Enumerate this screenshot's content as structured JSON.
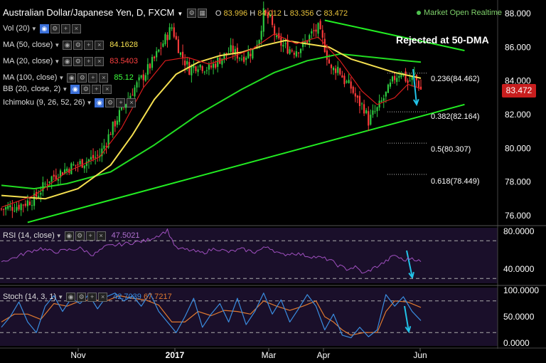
{
  "header": {
    "title": "Australian Dollar/Japanese Yen, D, FXCM",
    "ohlc": {
      "o_label": "O",
      "o": "83.996",
      "h_label": "H",
      "h": "84.012",
      "l_label": "L",
      "l": "83.356",
      "c_label": "C",
      "c": "83.472"
    },
    "status": "Market Open Realtime"
  },
  "indicators": [
    {
      "label": "Vol (20)",
      "value": "",
      "value_color": "#dddddd"
    },
    {
      "label": "MA (50, close)",
      "value": "84.1628",
      "value_color": "#f5e050"
    },
    {
      "label": "MA (20, close)",
      "value": "83.5403",
      "value_color": "#ff4040"
    },
    {
      "label": "MA (100, close)",
      "value": "85.12",
      "value_color": "#3dff3d"
    },
    {
      "label": "BB (20, close, 2)",
      "value": "",
      "value_color": "#dddddd"
    },
    {
      "label": "Ichimoku (9, 26, 52, 26)",
      "value": "",
      "value_color": "#dddddd"
    }
  ],
  "annotation": "Rejected at 50-DMA",
  "current_price": "83.472",
  "colors": {
    "bull": "#2ecc40",
    "bear": "#ff3b3b",
    "ma50": "#f5e050",
    "ma20": "#d81c1c",
    "ma100": "#22dd22",
    "trend": "#22ee22",
    "rsi": "#a050c0",
    "stoch_k": "#3a8de0",
    "stoch_d": "#e07a30",
    "arrow": "#22c3e8",
    "panel_bg": "#1a0f2a"
  },
  "chart_data": [
    {
      "type": "candlestick",
      "pair": "AUD/JPY",
      "timeframe": "D",
      "x_labels": [
        "Nov",
        "2017",
        "Mar",
        "Apr",
        "Jun"
      ],
      "ylim": [
        75.0,
        88.8
      ],
      "y_ticks": [
        "88.000",
        "86.000",
        "84.000",
        "82.000",
        "80.000",
        "78.000",
        "76.000"
      ],
      "fib_levels": [
        {
          "label": "0.236(84.462)",
          "value": 84.462
        },
        {
          "label": "0.382(82.164)",
          "value": 82.164
        },
        {
          "label": "0.5(80.307)",
          "value": 80.307
        },
        {
          "label": "0.618(78.449)",
          "value": 78.449
        }
      ],
      "close_path": [
        [
          0,
          76.4
        ],
        [
          8,
          76.6
        ],
        [
          15,
          77.0
        ],
        [
          22,
          78.2
        ],
        [
          30,
          78.8
        ],
        [
          38,
          79.2
        ],
        [
          45,
          79.6
        ],
        [
          50,
          81.0
        ],
        [
          55,
          82.3
        ],
        [
          60,
          83.4
        ],
        [
          65,
          84.3
        ],
        [
          70,
          85.3
        ],
        [
          75,
          86.5
        ],
        [
          78,
          87.2
        ],
        [
          82,
          85.6
        ],
        [
          86,
          84.7
        ],
        [
          90,
          85.0
        ],
        [
          95,
          84.7
        ],
        [
          100,
          85.3
        ],
        [
          105,
          85.8
        ],
        [
          110,
          85.4
        ],
        [
          115,
          85.8
        ],
        [
          118,
          86.6
        ],
        [
          120,
          88.0
        ],
        [
          123,
          87.6
        ],
        [
          126,
          86.4
        ],
        [
          130,
          86.0
        ],
        [
          134,
          85.8
        ],
        [
          138,
          86.1
        ],
        [
          142,
          86.8
        ],
        [
          145,
          87.1
        ],
        [
          148,
          86.0
        ],
        [
          151,
          84.6
        ],
        [
          154,
          84.8
        ],
        [
          157,
          84.0
        ],
        [
          160,
          83.6
        ],
        [
          163,
          82.8
        ],
        [
          166,
          82.4
        ],
        [
          168,
          81.6
        ],
        [
          170,
          82.0
        ],
        [
          172,
          82.3
        ],
        [
          176,
          83.2
        ],
        [
          180,
          84.2
        ],
        [
          183,
          84.6
        ],
        [
          186,
          83.9
        ],
        [
          189,
          84.3
        ],
        [
          192,
          83.472
        ]
      ],
      "ma50": [
        [
          0,
          77.2
        ],
        [
          20,
          77.0
        ],
        [
          35,
          77.6
        ],
        [
          50,
          79.0
        ],
        [
          60,
          80.8
        ],
        [
          70,
          82.9
        ],
        [
          80,
          84.4
        ],
        [
          90,
          85.1
        ],
        [
          100,
          85.5
        ],
        [
          110,
          85.7
        ],
        [
          120,
          86.1
        ],
        [
          130,
          86.4
        ],
        [
          140,
          86.2
        ],
        [
          150,
          86.0
        ],
        [
          160,
          85.3
        ],
        [
          170,
          84.9
        ],
        [
          180,
          84.5
        ],
        [
          192,
          84.16
        ]
      ],
      "ma20": [
        [
          0,
          76.5
        ],
        [
          15,
          77.2
        ],
        [
          30,
          78.6
        ],
        [
          45,
          79.5
        ],
        [
          55,
          81.2
        ],
        [
          65,
          83.6
        ],
        [
          75,
          85.2
        ],
        [
          85,
          85.4
        ],
        [
          95,
          85.0
        ],
        [
          105,
          85.4
        ],
        [
          115,
          85.9
        ],
        [
          125,
          86.8
        ],
        [
          135,
          86.2
        ],
        [
          145,
          86.6
        ],
        [
          155,
          85.2
        ],
        [
          165,
          83.4
        ],
        [
          172,
          82.6
        ],
        [
          180,
          83.0
        ],
        [
          186,
          83.8
        ],
        [
          192,
          83.54
        ]
      ],
      "ma100": [
        [
          0,
          77.8
        ],
        [
          15,
          77.6
        ],
        [
          30,
          77.9
        ],
        [
          50,
          78.6
        ],
        [
          70,
          80.2
        ],
        [
          90,
          82.0
        ],
        [
          110,
          83.5
        ],
        [
          125,
          84.5
        ],
        [
          140,
          85.2
        ],
        [
          155,
          85.6
        ],
        [
          170,
          85.4
        ],
        [
          185,
          85.2
        ],
        [
          192,
          85.12
        ]
      ],
      "trendlines": [
        {
          "from": [
            12,
            75.6
          ],
          "to": [
            212,
            82.6
          ]
        },
        {
          "from": [
            148,
            87.6
          ],
          "to": [
            212,
            85.8
          ]
        }
      ],
      "arrow_main": {
        "from": [
          190,
          84.7
        ],
        "to": [
          193,
          82.6
        ]
      }
    },
    {
      "type": "line",
      "name": "RSI (14, close)",
      "value_label": "47.5021",
      "ylim": [
        28,
        82
      ],
      "y_ticks": [
        "80.0000",
        "40.0000"
      ],
      "bands": [
        70,
        30
      ],
      "points": [
        [
          0,
          48
        ],
        [
          6,
          52
        ],
        [
          12,
          58
        ],
        [
          18,
          62
        ],
        [
          24,
          58
        ],
        [
          30,
          60
        ],
        [
          36,
          62
        ],
        [
          42,
          55
        ],
        [
          48,
          64
        ],
        [
          54,
          66
        ],
        [
          60,
          68
        ],
        [
          66,
          70
        ],
        [
          72,
          76
        ],
        [
          76,
          81
        ],
        [
          80,
          62
        ],
        [
          86,
          60
        ],
        [
          92,
          57
        ],
        [
          98,
          62
        ],
        [
          104,
          58
        ],
        [
          110,
          61
        ],
        [
          116,
          58
        ],
        [
          122,
          64
        ],
        [
          128,
          55
        ],
        [
          134,
          57
        ],
        [
          140,
          54
        ],
        [
          146,
          52
        ],
        [
          150,
          50
        ],
        [
          154,
          44
        ],
        [
          158,
          40
        ],
        [
          162,
          42
        ],
        [
          166,
          35
        ],
        [
          168,
          38
        ],
        [
          172,
          43
        ],
        [
          176,
          48
        ],
        [
          180,
          55
        ],
        [
          184,
          49
        ],
        [
          188,
          52
        ],
        [
          192,
          47.5
        ]
      ]
    },
    {
      "type": "line",
      "name": "Stoch (14, 3, 1)",
      "value_labels": [
        "42.7039",
        "67.7217"
      ],
      "ylim": [
        0,
        100
      ],
      "y_ticks": [
        "100.0000",
        "50.0000",
        "0.0000"
      ],
      "bands": [
        80,
        20
      ],
      "k": [
        [
          0,
          30
        ],
        [
          4,
          50
        ],
        [
          8,
          78
        ],
        [
          12,
          40
        ],
        [
          16,
          20
        ],
        [
          20,
          70
        ],
        [
          24,
          90
        ],
        [
          28,
          60
        ],
        [
          32,
          85
        ],
        [
          36,
          75
        ],
        [
          40,
          92
        ],
        [
          44,
          65
        ],
        [
          48,
          88
        ],
        [
          52,
          95
        ],
        [
          56,
          80
        ],
        [
          60,
          90
        ],
        [
          64,
          70
        ],
        [
          68,
          95
        ],
        [
          72,
          60
        ],
        [
          76,
          40
        ],
        [
          80,
          20
        ],
        [
          84,
          50
        ],
        [
          88,
          85
        ],
        [
          92,
          30
        ],
        [
          96,
          55
        ],
        [
          100,
          75
        ],
        [
          104,
          40
        ],
        [
          108,
          85
        ],
        [
          112,
          35
        ],
        [
          116,
          60
        ],
        [
          120,
          95
        ],
        [
          124,
          55
        ],
        [
          128,
          82
        ],
        [
          132,
          40
        ],
        [
          136,
          65
        ],
        [
          140,
          92
        ],
        [
          144,
          70
        ],
        [
          148,
          25
        ],
        [
          152,
          55
        ],
        [
          156,
          15
        ],
        [
          160,
          10
        ],
        [
          164,
          30
        ],
        [
          168,
          12
        ],
        [
          172,
          25
        ],
        [
          176,
          92
        ],
        [
          180,
          70
        ],
        [
          184,
          88
        ],
        [
          188,
          60
        ],
        [
          192,
          42.7
        ]
      ],
      "d": [
        [
          0,
          40
        ],
        [
          6,
          55
        ],
        [
          12,
          55
        ],
        [
          18,
          45
        ],
        [
          24,
          75
        ],
        [
          30,
          70
        ],
        [
          36,
          80
        ],
        [
          42,
          82
        ],
        [
          48,
          80
        ],
        [
          54,
          90
        ],
        [
          60,
          85
        ],
        [
          66,
          82
        ],
        [
          72,
          72
        ],
        [
          78,
          40
        ],
        [
          84,
          40
        ],
        [
          90,
          60
        ],
        [
          96,
          52
        ],
        [
          102,
          62
        ],
        [
          108,
          60
        ],
        [
          114,
          55
        ],
        [
          120,
          80
        ],
        [
          126,
          70
        ],
        [
          132,
          62
        ],
        [
          138,
          70
        ],
        [
          144,
          80
        ],
        [
          148,
          50
        ],
        [
          152,
          40
        ],
        [
          156,
          25
        ],
        [
          160,
          15
        ],
        [
          166,
          20
        ],
        [
          172,
          20
        ],
        [
          176,
          60
        ],
        [
          180,
          80
        ],
        [
          186,
          78
        ],
        [
          192,
          67.7
        ]
      ]
    }
  ]
}
